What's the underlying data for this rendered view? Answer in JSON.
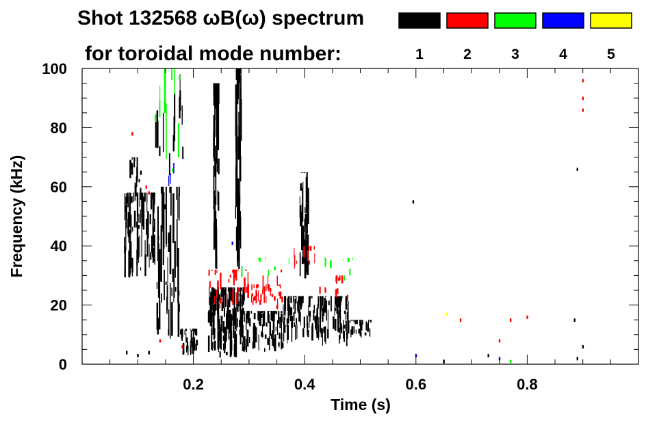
{
  "chart_data": {
    "type": "scatter",
    "title_line1": "Shot 132568 ωB(ω) spectrum",
    "title_line2": "for toroidal mode number:",
    "xlabel": "Time (s)",
    "ylabel": "Frequency (kHz)",
    "xlim": [
      0.0,
      1.0
    ],
    "ylim": [
      0,
      100
    ],
    "x_ticks": [
      0.2,
      0.4,
      0.6,
      0.8
    ],
    "x_tick_labels": [
      "0.2",
      "0.4",
      "0.6",
      "0.8"
    ],
    "y_ticks": [
      0,
      20,
      40,
      60,
      80,
      100
    ],
    "y_tick_labels": [
      "0",
      "20",
      "40",
      "60",
      "80",
      "100"
    ],
    "grid": false,
    "legend": [
      {
        "label": "1",
        "color": "#000000"
      },
      {
        "label": "2",
        "color": "#ff0000"
      },
      {
        "label": "3",
        "color": "#00ff00"
      },
      {
        "label": "4",
        "color": "#0000ff"
      },
      {
        "label": "5",
        "color": "#ffff00"
      }
    ],
    "series": [
      {
        "name": "n=1",
        "color": "#000000",
        "regions": [
          {
            "t": [
              0.075,
              0.13
            ],
            "f": [
              28,
              58
            ],
            "density": 90
          },
          {
            "t": [
              0.085,
              0.105
            ],
            "f": [
              54,
              70
            ],
            "density": 18
          },
          {
            "t": [
              0.13,
              0.175
            ],
            "f": [
              5,
              60
            ],
            "density": 55
          },
          {
            "t": [
              0.175,
              0.205
            ],
            "f": [
              3,
              12
            ],
            "density": 45
          },
          {
            "t": [
              0.225,
              0.29
            ],
            "f": [
              2,
              26
            ],
            "density": 150
          },
          {
            "t": [
              0.29,
              0.36
            ],
            "f": [
              4,
              18
            ],
            "density": 90
          },
          {
            "t": [
              0.36,
              0.48
            ],
            "f": [
              6,
              23
            ],
            "density": 150
          },
          {
            "t": [
              0.48,
              0.52
            ],
            "f": [
              9,
              15
            ],
            "density": 30
          },
          {
            "t": [
              0.235,
              0.245
            ],
            "f": [
              30,
              95
            ],
            "density": 45
          },
          {
            "t": [
              0.275,
              0.285
            ],
            "f": [
              30,
              100
            ],
            "density": 45
          },
          {
            "t": [
              0.39,
              0.405
            ],
            "f": [
              28,
              65
            ],
            "density": 35
          },
          {
            "t": [
              0.13,
              0.18
            ],
            "f": [
              62,
              98
            ],
            "density": 14
          }
        ],
        "points": [
          [
            0.08,
            4
          ],
          [
            0.1,
            3
          ],
          [
            0.12,
            4
          ],
          [
            0.595,
            55
          ],
          [
            0.65,
            1
          ],
          [
            0.73,
            3
          ],
          [
            0.89,
            66
          ],
          [
            0.89,
            2
          ],
          [
            0.9,
            6
          ],
          [
            0.885,
            15
          ]
        ]
      },
      {
        "name": "n=2",
        "color": "#ff0000",
        "regions": [
          {
            "t": [
              0.22,
              0.36
            ],
            "f": [
              18,
              32
            ],
            "density": 40
          },
          {
            "t": [
              0.3,
              0.36
            ],
            "f": [
              20,
              27
            ],
            "density": 25
          },
          {
            "t": [
              0.38,
              0.42
            ],
            "f": [
              32,
              40
            ],
            "density": 12
          },
          {
            "t": [
              0.42,
              0.48
            ],
            "f": [
              22,
              30
            ],
            "density": 12
          }
        ],
        "points": [
          [
            0.09,
            78
          ],
          [
            0.115,
            60
          ],
          [
            0.12,
            58
          ],
          [
            0.14,
            8
          ],
          [
            0.18,
            6
          ],
          [
            0.68,
            15
          ],
          [
            0.75,
            8
          ],
          [
            0.77,
            15
          ],
          [
            0.8,
            16
          ],
          [
            0.9,
            96
          ],
          [
            0.9,
            90
          ],
          [
            0.9,
            86
          ]
        ]
      },
      {
        "name": "n=3",
        "color": "#00ff00",
        "regions": [
          {
            "t": [
              0.13,
              0.18
            ],
            "f": [
              48,
              100
            ],
            "density": 10
          },
          {
            "t": [
              0.28,
              0.52
            ],
            "f": [
              28,
              36
            ],
            "density": 14
          }
        ],
        "points": [
          [
            0.175,
            97
          ],
          [
            0.77,
            1
          ]
        ]
      },
      {
        "name": "n=4",
        "color": "#0000ff",
        "regions": [
          {
            "t": [
              0.15,
              0.17
            ],
            "f": [
              60,
              68
            ],
            "density": 5
          }
        ],
        "points": [
          [
            0.27,
            41
          ],
          [
            0.6,
            3
          ],
          [
            0.75,
            2
          ]
        ]
      },
      {
        "name": "n=5",
        "color": "#ffff00",
        "regions": [],
        "points": [
          [
            0.655,
            17
          ]
        ]
      }
    ]
  }
}
